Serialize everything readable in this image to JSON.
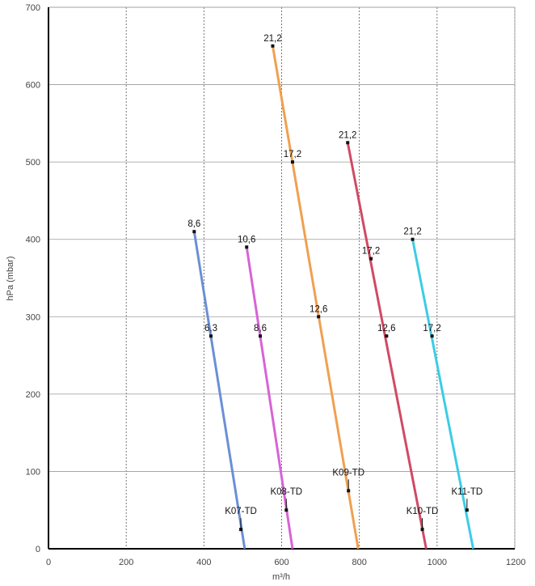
{
  "chart_data": {
    "type": "line",
    "title": "",
    "xlabel": "m³/h",
    "ylabel": "hPa (mbar)",
    "xlim": [
      0,
      1200
    ],
    "ylim": [
      0,
      700
    ],
    "x_ticks": [
      "0",
      "200",
      "400",
      "600",
      "800",
      "1000",
      "1200"
    ],
    "y_ticks": [
      "0",
      "100",
      "200",
      "300",
      "400",
      "500",
      "600",
      "700"
    ],
    "grid": true,
    "series": [
      {
        "name": "K07-TD",
        "color": "#6b8fd6",
        "line": [
          [
            375,
            410
          ],
          [
            505,
            0
          ]
        ],
        "points": [
          {
            "x": 375,
            "y": 410,
            "label": "8,6"
          },
          {
            "x": 418,
            "y": 275,
            "label": "6,3"
          },
          {
            "x": 495,
            "y": 25,
            "label": ""
          }
        ]
      },
      {
        "name": "K08-TD",
        "color": "#d664d6",
        "line": [
          [
            510,
            390
          ],
          [
            628,
            0
          ]
        ],
        "points": [
          {
            "x": 510,
            "y": 390,
            "label": "10,6"
          },
          {
            "x": 545,
            "y": 275,
            "label": "8,6"
          },
          {
            "x": 612,
            "y": 50,
            "label": ""
          }
        ]
      },
      {
        "name": "K09-TD",
        "color": "#f0a050",
        "line": [
          [
            577,
            650
          ],
          [
            797,
            0
          ]
        ],
        "points": [
          {
            "x": 577,
            "y": 650,
            "label": "21,2"
          },
          {
            "x": 628,
            "y": 500,
            "label": "17,2"
          },
          {
            "x": 695,
            "y": 300,
            "label": "12,6"
          },
          {
            "x": 772,
            "y": 75,
            "label": ""
          }
        ]
      },
      {
        "name": "K10-TD",
        "color": "#d04a64",
        "line": [
          [
            770,
            525
          ],
          [
            972,
            0
          ]
        ],
        "points": [
          {
            "x": 770,
            "y": 525,
            "label": "21,2"
          },
          {
            "x": 830,
            "y": 375,
            "label": "17,2"
          },
          {
            "x": 870,
            "y": 275,
            "label": "12,6"
          },
          {
            "x": 962,
            "y": 25,
            "label": ""
          }
        ]
      },
      {
        "name": "K11-TD",
        "color": "#3ccce6",
        "line": [
          [
            937,
            400
          ],
          [
            1093,
            0
          ]
        ],
        "points": [
          {
            "x": 937,
            "y": 400,
            "label": "21,2"
          },
          {
            "x": 987,
            "y": 275,
            "label": "17,2"
          },
          {
            "x": 1077,
            "y": 50,
            "label": ""
          }
        ]
      }
    ],
    "series_labels": [
      {
        "series": "K07-TD",
        "text": "K07-TD"
      },
      {
        "series": "K08-TD",
        "text": "K08-TD"
      },
      {
        "series": "K09-TD",
        "text": "K09-TD"
      },
      {
        "series": "K10-TD",
        "text": "K10-TD"
      },
      {
        "series": "K11-TD",
        "text": "K11-TD"
      }
    ]
  }
}
